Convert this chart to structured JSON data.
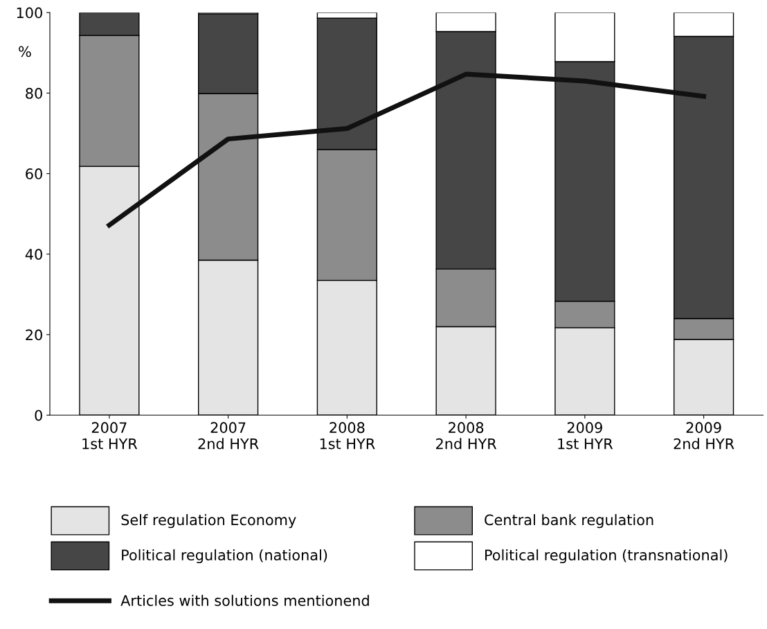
{
  "chart_data": {
    "type": "bar",
    "stacked": true,
    "ylabel": "%",
    "categories": [
      "2007\n1st HYR",
      "2007\n2nd HYR",
      "2008\n1st HYR",
      "2008\n2nd HYR",
      "2009\n1st HYR",
      "2009\n2nd HYR"
    ],
    "series": [
      {
        "name": "Self regulation Economy",
        "color": "#e4e4e4",
        "values": [
          61.8,
          38.5,
          33.5,
          22,
          21.7,
          18.8
        ]
      },
      {
        "name": "Central bank regulation",
        "color": "#8c8c8c",
        "values": [
          32.5,
          41.4,
          32.5,
          14.3,
          6.6,
          5.2
        ]
      },
      {
        "name": "Political regulation (national)",
        "color": "#464646",
        "values": [
          5.7,
          19.8,
          32.6,
          59,
          59.5,
          70.1
        ]
      },
      {
        "name": "Political regulation (transnational)",
        "color": "#ffffff",
        "values": [
          null,
          0.3,
          1.4,
          4.7,
          12.2,
          5.9
        ]
      },
      {
        "name": "Articles with solutions mentionend",
        "type": "line",
        "color": "#111111",
        "values": [
          47.2,
          68.6,
          71.2,
          84.7,
          83.0,
          79.2
        ]
      }
    ],
    "ylim": [
      0,
      100
    ],
    "yticks": [
      0,
      20,
      40,
      60,
      80,
      100
    ],
    "grid": false,
    "legend": "bottom",
    "marker": "none",
    "line_style": "solid"
  }
}
